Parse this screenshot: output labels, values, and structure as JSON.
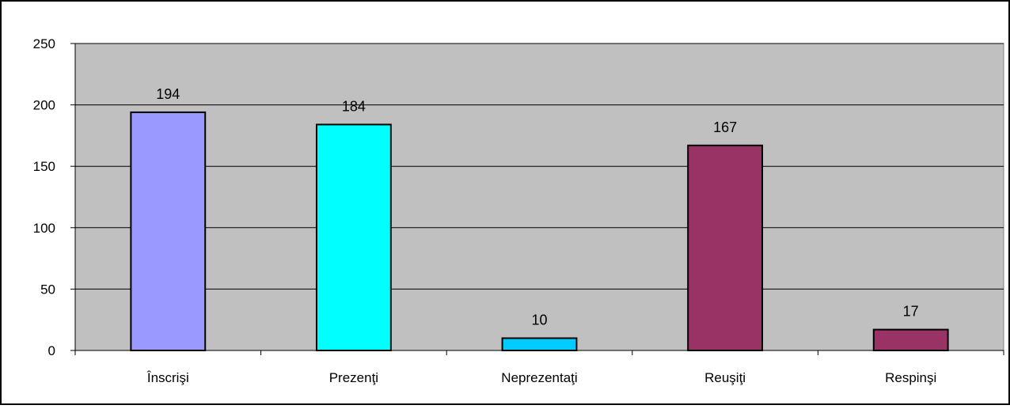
{
  "chart_data": {
    "type": "bar",
    "categories": [
      "Înscrişi",
      "Prezenţi",
      "Neprezentaţi",
      "Reuşiţi",
      "Respinşi"
    ],
    "values": [
      194,
      184,
      10,
      167,
      17
    ],
    "bar_colors": [
      "#9999FF",
      "#00FFFF",
      "#00CCFF",
      "#993366",
      "#993366"
    ],
    "data_labels": [
      "194",
      "184",
      "10",
      "167",
      "17"
    ],
    "ylim": [
      0,
      250
    ],
    "yticks": [
      0,
      50,
      100,
      150,
      200,
      250
    ],
    "ytick_labels": [
      "0",
      "50",
      "100",
      "150",
      "200",
      "250"
    ],
    "grid": true,
    "plot_background": "#C0C0C0",
    "title": "",
    "xlabel": "",
    "ylabel": ""
  }
}
